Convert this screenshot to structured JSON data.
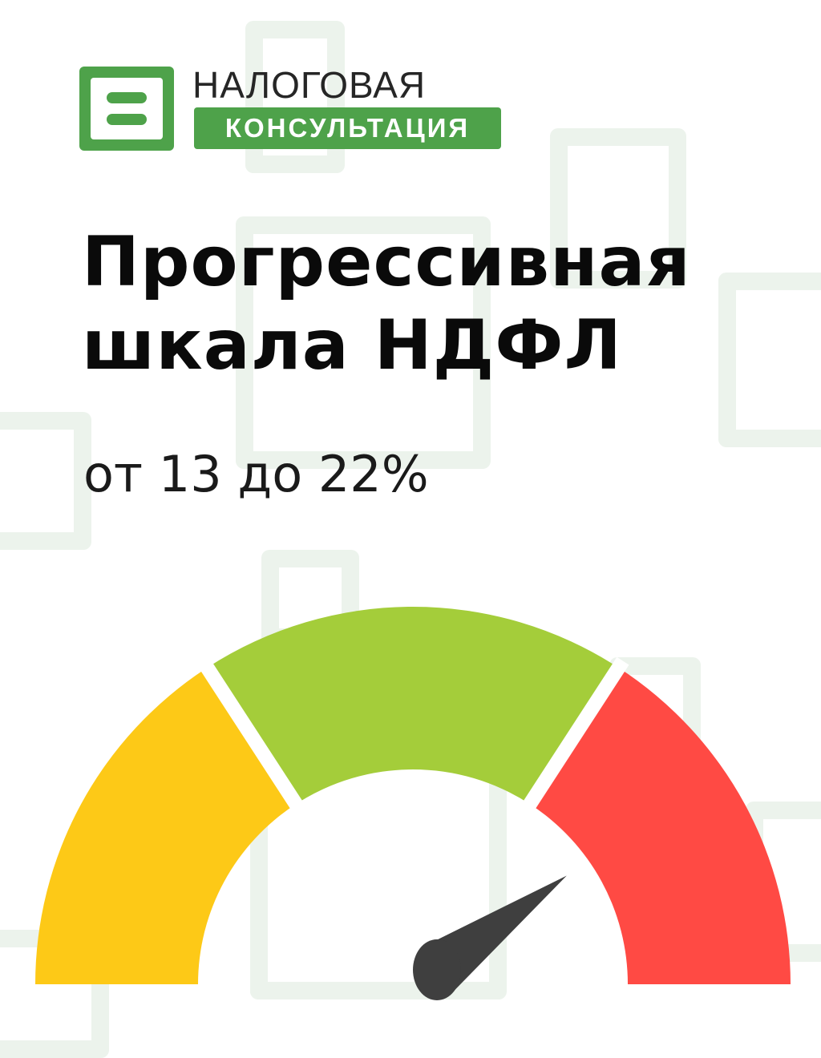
{
  "logo": {
    "line1": "НАЛОГОВАЯ",
    "line2": "КОНСУЛЬТАЦИЯ",
    "brand_color": "#4ea24a"
  },
  "title": {
    "line1": "Прогрессивная",
    "line2": "шкала НДФЛ"
  },
  "subtitle": "от 13 до 22%",
  "gauge": {
    "segments": [
      {
        "color": "#fdc917"
      },
      {
        "color": "#a4cd3a"
      },
      {
        "color": "#ff4a44"
      }
    ],
    "needle_color": "#3f3f3f",
    "needle_level_percent": 80
  }
}
